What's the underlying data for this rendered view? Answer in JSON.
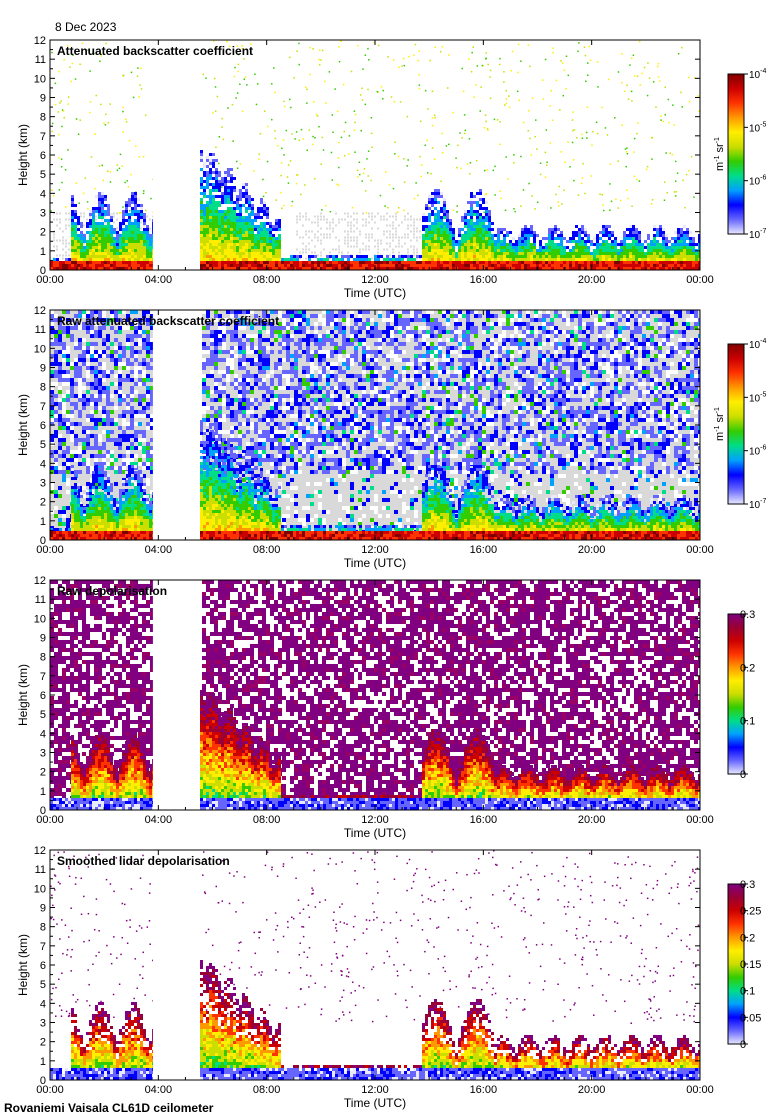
{
  "header": {
    "date": "8 Dec 2023"
  },
  "footer": {
    "site": "Rovaniemi Vaisala CL61D ceilometer"
  },
  "colormaps": {
    "jet_light": [
      "#e8e8ff",
      "#6666ff",
      "#0000ff",
      "#00a0ff",
      "#00dd88",
      "#33cc00",
      "#ccdd00",
      "#ffee00",
      "#ff9900",
      "#ff3300",
      "#cc0000",
      "#800000"
    ],
    "depol": [
      "#e8e8ff",
      "#6666ff",
      "#0000ff",
      "#00a0ff",
      "#00dd88",
      "#33cc00",
      "#ccdd00",
      "#ffee00",
      "#ff9900",
      "#ff3300",
      "#cc0000",
      "#990033",
      "#800080"
    ],
    "background_clear": "#ffffff",
    "background_noise": "#d9d9d9",
    "gap_color": "#ffffff",
    "depol_noise_colors": [
      "#800080",
      "#ffffff",
      "#990066"
    ]
  },
  "chart_data": [
    {
      "type": "heatmap",
      "title": "Attenuated backscatter coefficient",
      "xlabel": "Time (UTC)",
      "ylabel": "Height (km)",
      "xlim": [
        0,
        24
      ],
      "ylim": [
        0,
        12
      ],
      "x_tick_labels": [
        "00:00",
        "04:00",
        "08:00",
        "12:00",
        "16:00",
        "20:00",
        "00:00"
      ],
      "y_tick_labels": [
        "0",
        "1",
        "2",
        "3",
        "4",
        "5",
        "6",
        "7",
        "8",
        "9",
        "10",
        "11",
        "12"
      ],
      "colorbar": {
        "scale": "log",
        "range": [
          1e-07,
          0.0001
        ],
        "tick_bases": [
          "10",
          "10",
          "10",
          "10"
        ],
        "tick_exponents": [
          "-7",
          "-6",
          "-5",
          "-4"
        ],
        "unit_parts": [
          "m",
          "-1",
          " sr",
          "-1"
        ]
      },
      "data_gap_hours": [
        3.8,
        5.5
      ],
      "noise_background": false
    },
    {
      "type": "heatmap",
      "title": "Raw attenuated backscatter coefficient",
      "xlabel": "Time (UTC)",
      "ylabel": "Height (km)",
      "xlim": [
        0,
        24
      ],
      "ylim": [
        0,
        12
      ],
      "x_tick_labels": [
        "00:00",
        "04:00",
        "08:00",
        "12:00",
        "16:00",
        "20:00",
        "00:00"
      ],
      "y_tick_labels": [
        "0",
        "1",
        "2",
        "3",
        "4",
        "5",
        "6",
        "7",
        "8",
        "9",
        "10",
        "11",
        "12"
      ],
      "colorbar": {
        "scale": "log",
        "range": [
          1e-07,
          0.0001
        ],
        "tick_bases": [
          "10",
          "10",
          "10",
          "10"
        ],
        "tick_exponents": [
          "-7",
          "-6",
          "-5",
          "-4"
        ],
        "unit_parts": [
          "m",
          "-1",
          " sr",
          "-1"
        ]
      },
      "data_gap_hours": [
        3.8,
        5.5
      ],
      "noise_background": true
    },
    {
      "type": "heatmap",
      "title": "Raw depolarisation",
      "xlabel": "Time (UTC)",
      "ylabel": "Height (km)",
      "xlim": [
        0,
        24
      ],
      "ylim": [
        0,
        12
      ],
      "x_tick_labels": [
        "00:00",
        "04:00",
        "08:00",
        "12:00",
        "16:00",
        "20:00",
        "00:00"
      ],
      "y_tick_labels": [
        "0",
        "1",
        "2",
        "3",
        "4",
        "5",
        "6",
        "7",
        "8",
        "9",
        "10",
        "11",
        "12"
      ],
      "colorbar": {
        "scale": "linear",
        "range": [
          0,
          0.3
        ],
        "ticks": [
          "0",
          "0.1",
          "0.2",
          "0.3"
        ]
      },
      "data_gap_hours": [
        3.8,
        5.5
      ],
      "noise_background": true
    },
    {
      "type": "heatmap",
      "title": "Smoothed lidar depolarisation",
      "xlabel": "Time (UTC)",
      "ylabel": "Height (km)",
      "xlim": [
        0,
        24
      ],
      "ylim": [
        0,
        12
      ],
      "x_tick_labels": [
        "00:00",
        "04:00",
        "08:00",
        "12:00",
        "16:00",
        "20:00",
        "00:00"
      ],
      "y_tick_labels": [
        "0",
        "1",
        "2",
        "3",
        "4",
        "5",
        "6",
        "7",
        "8",
        "9",
        "10",
        "11",
        "12"
      ],
      "colorbar": {
        "scale": "linear",
        "range": [
          0,
          0.3
        ],
        "ticks": [
          "0",
          "0.05",
          "0.1",
          "0.15",
          "0.2",
          "0.25",
          "0.3"
        ]
      },
      "data_gap_hours": [
        3.8,
        5.5
      ],
      "noise_background": false
    }
  ]
}
